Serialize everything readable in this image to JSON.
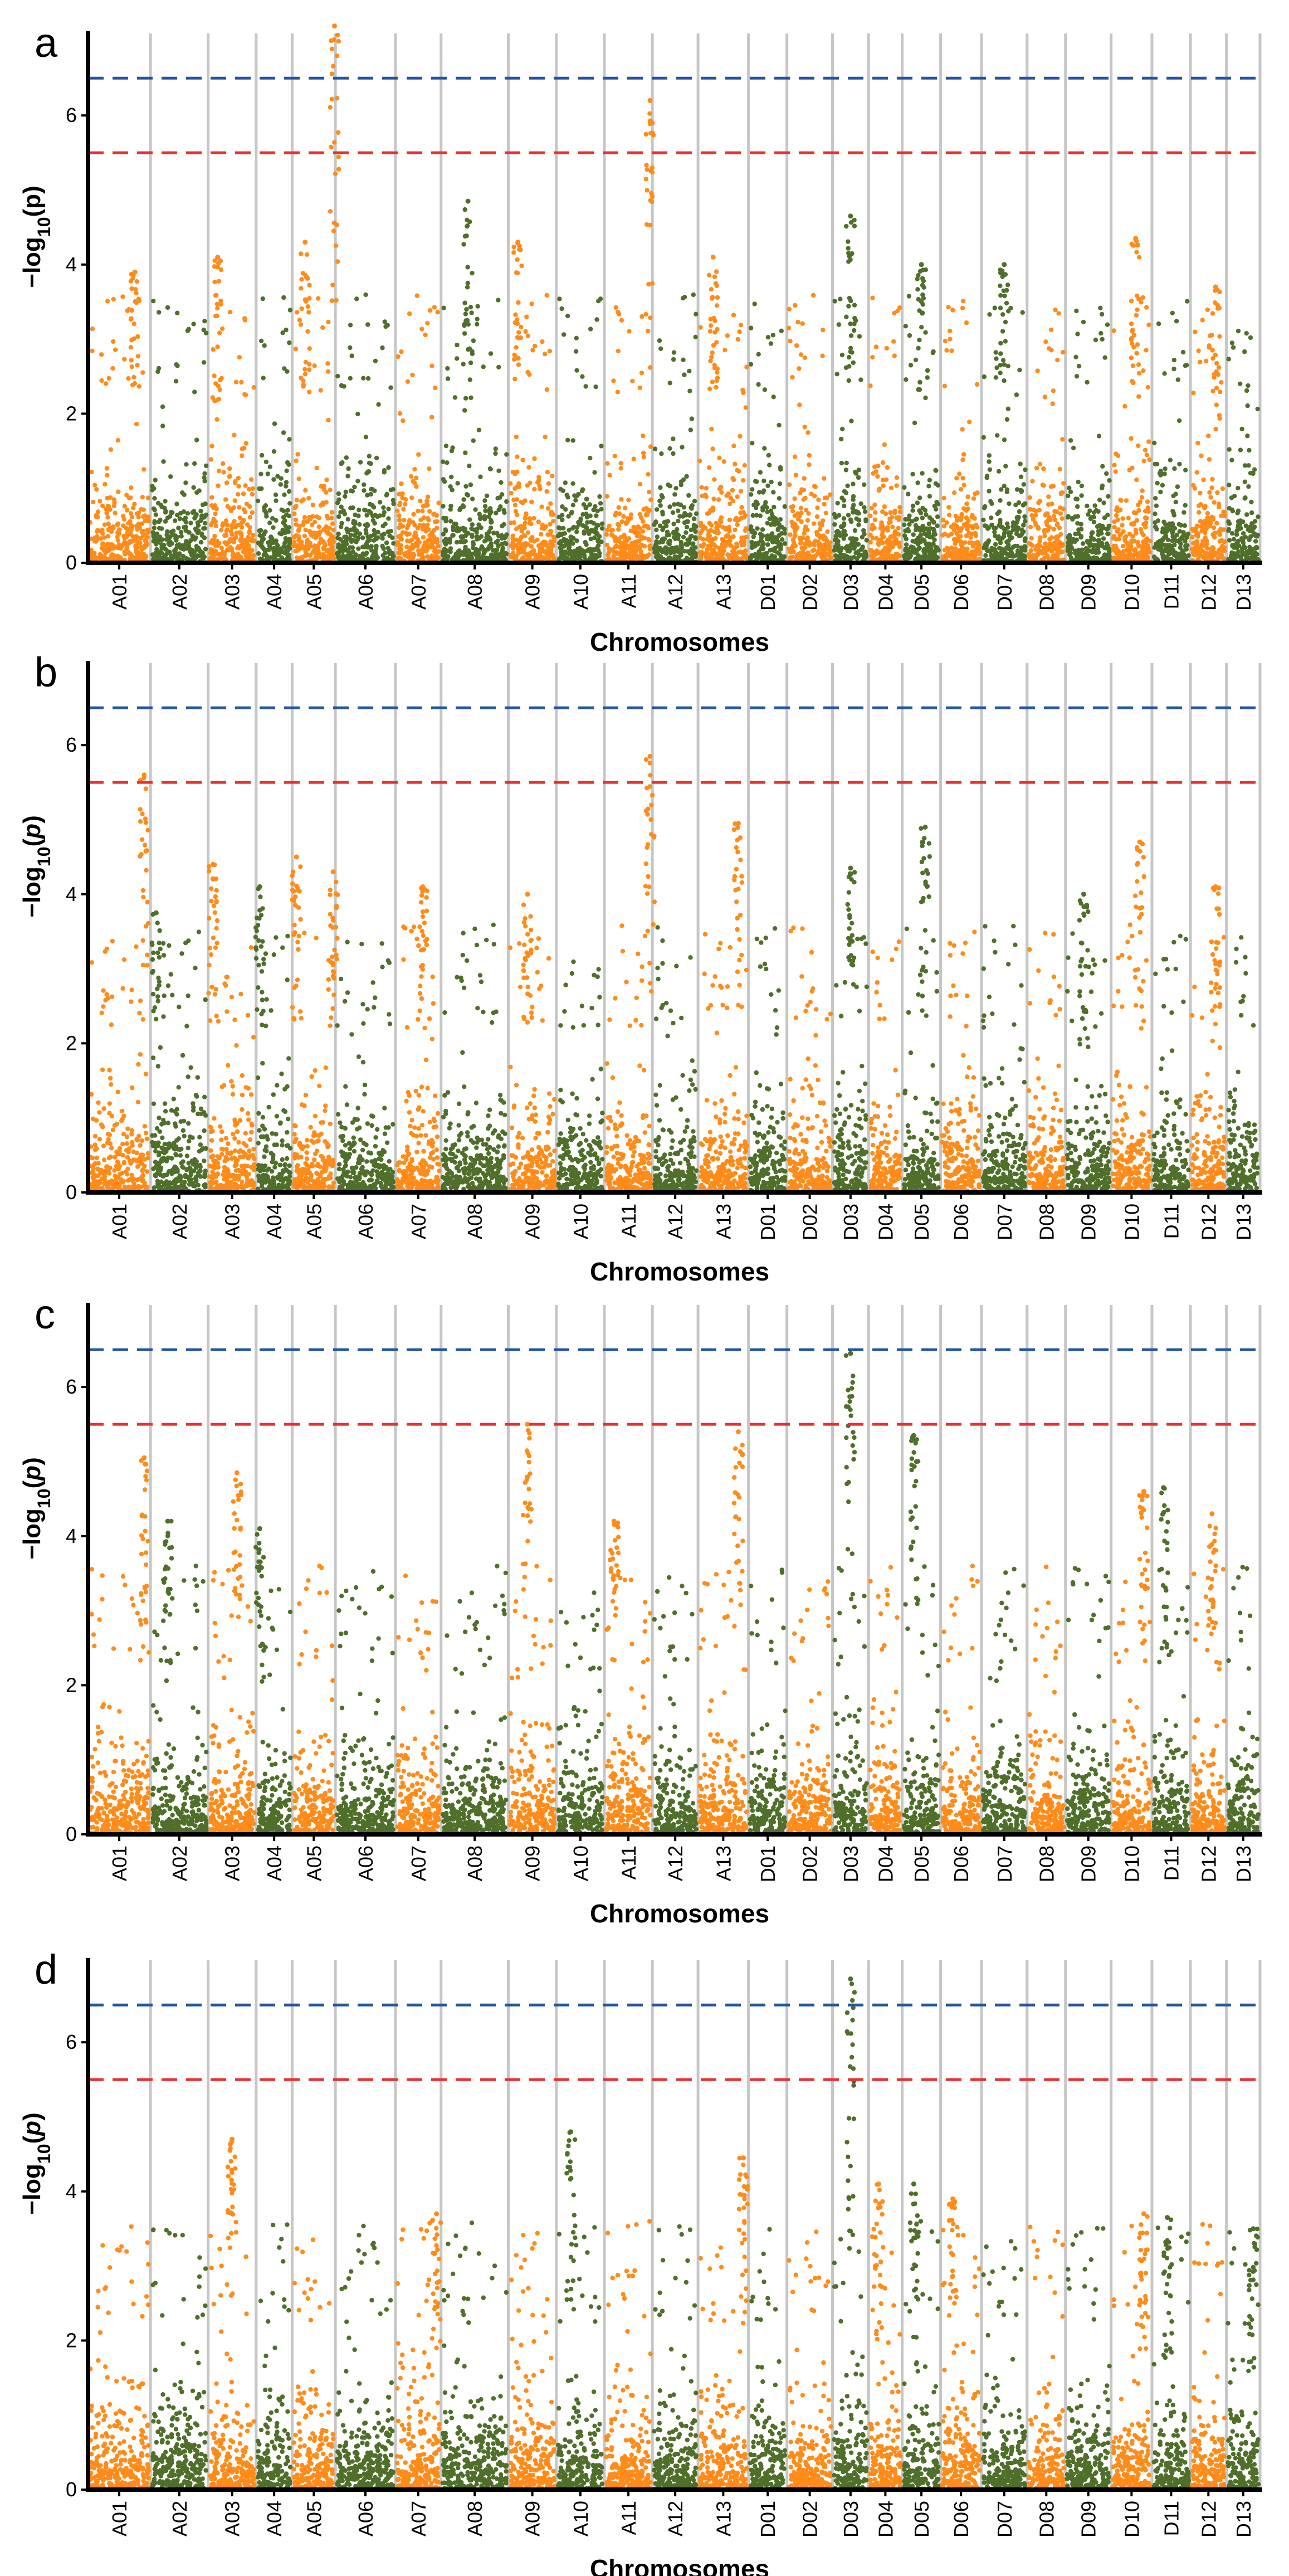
{
  "chart_data": {
    "type": "scatter",
    "subtype": "manhattan",
    "xlabel": "Chromosomes",
    "ylabel": "−log10(p)",
    "yticks": [
      0,
      2,
      4,
      6
    ],
    "ylim": [
      0,
      7.1
    ],
    "thresholds": [
      {
        "name": "blue-threshold",
        "value": 6.5,
        "color": "#2355a4",
        "style": "dashed"
      },
      {
        "name": "red-threshold",
        "value": 5.5,
        "color": "#e8302f",
        "style": "dashed"
      }
    ],
    "colors": {
      "orange": "#ff8c1a",
      "green": "#4f6f2a",
      "grid": "#c6c6c6",
      "axis": "#000000"
    },
    "chromosomes": [
      "A01",
      "A02",
      "A03",
      "A04",
      "A05",
      "A06",
      "A07",
      "A08",
      "A09",
      "A10",
      "A11",
      "A12",
      "A13",
      "D01",
      "D02",
      "D03",
      "D04",
      "D05",
      "D06",
      "D07",
      "D08",
      "D09",
      "D10",
      "D11",
      "D12",
      "D13"
    ],
    "chromosome_weights": [
      1.3,
      1.2,
      1.0,
      0.75,
      0.9,
      1.25,
      0.95,
      1.4,
      1.0,
      1.0,
      1.0,
      0.95,
      1.05,
      0.8,
      0.95,
      0.75,
      0.7,
      0.8,
      0.85,
      0.95,
      0.8,
      0.95,
      0.85,
      0.8,
      0.75,
      0.7
    ],
    "panels": [
      {
        "label": "a",
        "ylabel_style": "bold",
        "peaks": [
          {
            "chrom": "A01",
            "p": 0.75,
            "value": 3.9
          },
          {
            "chrom": "A03",
            "p": 0.2,
            "value": 4.1
          },
          {
            "chrom": "A05",
            "p": 0.3,
            "value": 4.3
          },
          {
            "chrom": "A05",
            "p": 0.98,
            "value": 7.2
          },
          {
            "chrom": "A08",
            "p": 0.4,
            "value": 4.85
          },
          {
            "chrom": "A09",
            "p": 0.2,
            "value": 4.3
          },
          {
            "chrom": "A11",
            "p": 0.95,
            "value": 6.2
          },
          {
            "chrom": "A13",
            "p": 0.3,
            "value": 4.1
          },
          {
            "chrom": "D03",
            "p": 0.5,
            "value": 4.65
          },
          {
            "chrom": "D05",
            "p": 0.5,
            "value": 4.0
          },
          {
            "chrom": "D07",
            "p": 0.5,
            "value": 4.0
          },
          {
            "chrom": "D10",
            "p": 0.6,
            "value": 4.35
          },
          {
            "chrom": "D12",
            "p": 0.7,
            "value": 3.7
          }
        ]
      },
      {
        "label": "b",
        "ylabel_style": "italic",
        "peaks": [
          {
            "chrom": "A01",
            "p": 0.9,
            "value": 5.6
          },
          {
            "chrom": "A02",
            "p": 0.1,
            "value": 3.75
          },
          {
            "chrom": "A03",
            "p": 0.1,
            "value": 4.4
          },
          {
            "chrom": "A04",
            "p": 0.1,
            "value": 4.1
          },
          {
            "chrom": "A05",
            "p": 0.1,
            "value": 4.5
          },
          {
            "chrom": "A05",
            "p": 0.95,
            "value": 4.3
          },
          {
            "chrom": "A07",
            "p": 0.6,
            "value": 4.1
          },
          {
            "chrom": "A09",
            "p": 0.4,
            "value": 4.0
          },
          {
            "chrom": "A11",
            "p": 0.95,
            "value": 5.85
          },
          {
            "chrom": "A13",
            "p": 0.8,
            "value": 4.95
          },
          {
            "chrom": "D03",
            "p": 0.5,
            "value": 4.35
          },
          {
            "chrom": "D05",
            "p": 0.6,
            "value": 4.9
          },
          {
            "chrom": "D09",
            "p": 0.4,
            "value": 4.0
          },
          {
            "chrom": "D10",
            "p": 0.7,
            "value": 4.7
          },
          {
            "chrom": "D12",
            "p": 0.7,
            "value": 4.1
          }
        ]
      },
      {
        "label": "c",
        "ylabel_style": "italic",
        "peaks": [
          {
            "chrom": "A01",
            "p": 0.9,
            "value": 5.05
          },
          {
            "chrom": "A02",
            "p": 0.3,
            "value": 4.2
          },
          {
            "chrom": "A03",
            "p": 0.6,
            "value": 4.85
          },
          {
            "chrom": "A04",
            "p": 0.1,
            "value": 4.1
          },
          {
            "chrom": "A09",
            "p": 0.4,
            "value": 5.5
          },
          {
            "chrom": "A11",
            "p": 0.2,
            "value": 4.2
          },
          {
            "chrom": "A13",
            "p": 0.8,
            "value": 5.4
          },
          {
            "chrom": "D03",
            "p": 0.5,
            "value": 6.45
          },
          {
            "chrom": "D05",
            "p": 0.3,
            "value": 5.35
          },
          {
            "chrom": "D10",
            "p": 0.8,
            "value": 4.6
          },
          {
            "chrom": "D11",
            "p": 0.3,
            "value": 4.65
          },
          {
            "chrom": "D12",
            "p": 0.6,
            "value": 4.3
          }
        ]
      },
      {
        "label": "d",
        "ylabel_style": "italic",
        "peaks": [
          {
            "chrom": "A03",
            "p": 0.5,
            "value": 4.7
          },
          {
            "chrom": "A07",
            "p": 0.9,
            "value": 3.7
          },
          {
            "chrom": "A10",
            "p": 0.3,
            "value": 4.8
          },
          {
            "chrom": "A13",
            "p": 0.9,
            "value": 4.45
          },
          {
            "chrom": "D03",
            "p": 0.5,
            "value": 6.85
          },
          {
            "chrom": "D04",
            "p": 0.3,
            "value": 4.1
          },
          {
            "chrom": "D05",
            "p": 0.3,
            "value": 4.1
          },
          {
            "chrom": "D06",
            "p": 0.3,
            "value": 3.9
          },
          {
            "chrom": "D10",
            "p": 0.8,
            "value": 3.7
          },
          {
            "chrom": "D11",
            "p": 0.4,
            "value": 3.65
          },
          {
            "chrom": "D13",
            "p": 0.8,
            "value": 3.5
          }
        ]
      }
    ]
  }
}
